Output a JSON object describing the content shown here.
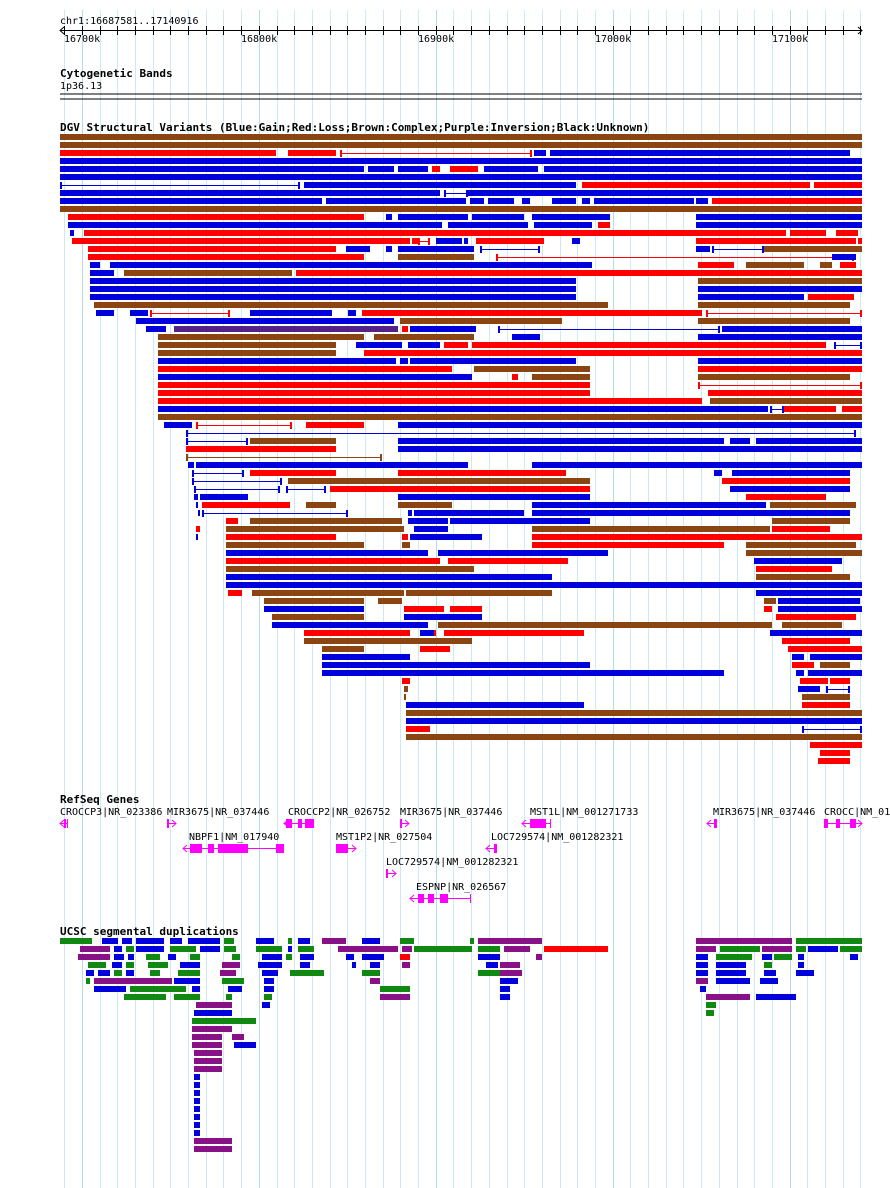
{
  "ruler": {
    "label": "chr1:16687581..17140916",
    "start": 16687581,
    "end": 17140916,
    "ticks": [
      {
        "pos": 16700000,
        "label": "16700k"
      },
      {
        "pos": 16800000,
        "label": "16800k"
      },
      {
        "pos": 16900000,
        "label": "16900k"
      },
      {
        "pos": 17000000,
        "label": "17000k"
      },
      {
        "pos": 17100000,
        "label": "17100k"
      }
    ]
  },
  "cytoband": {
    "title": "Cytogenetic Bands",
    "band": "1p36.13"
  },
  "dgv": {
    "title": "DGV Structural Variants (Blue:Gain;Red:Loss;Brown:Complex;Purple:Inversion;Black:Unknown)",
    "colors": {
      "gain": "#0000dd",
      "loss": "#ff0000",
      "complex": "#8b4513",
      "inversion": "#552288",
      "unknown": "#000000"
    }
  },
  "refseq": {
    "title": "RefSeq Genes",
    "color": "#ff00ff",
    "genes": [
      {
        "label": "CROCCP3|NR_023386"
      },
      {
        "label": "MIR3675|NR_037446"
      },
      {
        "label": "CROCCP2|NR_026752"
      },
      {
        "label": "MIR3675|NR_037446"
      },
      {
        "label": "MST1L|NM_001271733"
      },
      {
        "label": "MIR3675|NR_037446"
      },
      {
        "label": "CROCC|NM_01"
      },
      {
        "label": "NBPF1|NM_017940"
      },
      {
        "label": "MST1P2|NR_027504"
      },
      {
        "label": "LOC729574|NM_001282321"
      },
      {
        "label": "LOC729574|NM_001282321"
      },
      {
        "label": "ESPNP|NR_026567"
      }
    ]
  },
  "segdup": {
    "title": "UCSC segmental duplications",
    "colors": {
      "blue": "#0000dd",
      "green": "#118811",
      "purple": "#881188",
      "red": "#ff0000"
    }
  }
}
